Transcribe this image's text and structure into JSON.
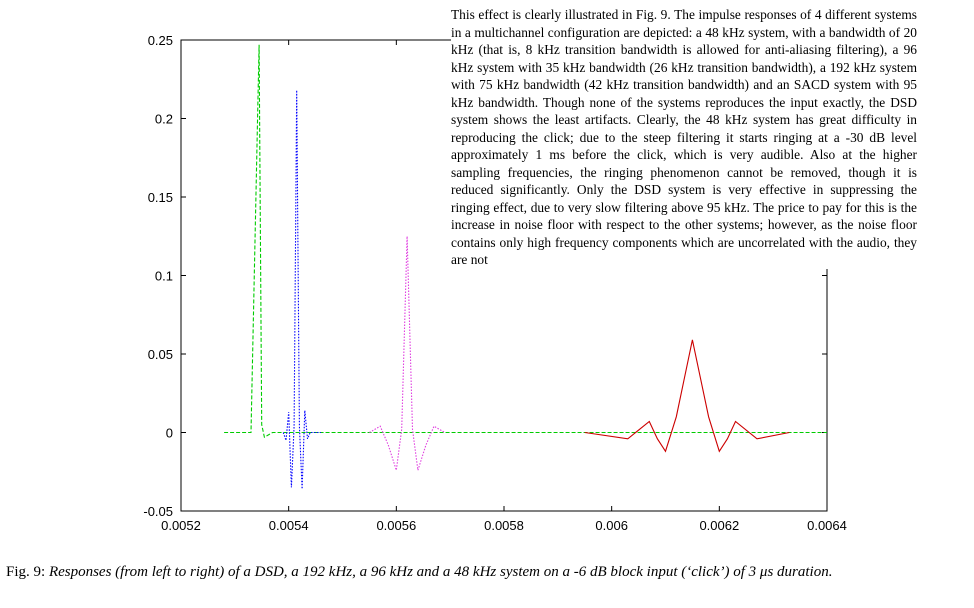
{
  "paragraph": "This effect is clearly illustrated in Fig. 9. The impulse responses of 4 different systems in a multichannel configuration are depicted: a 48 kHz system, with a bandwidth of 20 kHz (that is, 8 kHz transition bandwidth is allowed for anti-aliasing filtering), a 96 kHz system with 35 kHz bandwidth (26 kHz transition bandwidth), a 192 kHz system with 75 kHz bandwidth (42 kHz transition bandwidth) and an SACD system with 95 kHz bandwidth. Though none of the systems reproduces the input exactly, the DSD system shows the least artifacts. Clearly, the 48 kHz system has great difficulty in reproducing the click; due to the steep filtering it starts ringing at a -30 dB level approximately 1 ms before the click, which is very audible. Also at the higher sampling frequencies, the ringing phenomenon cannot be removed, though it is reduced significantly. Only the DSD system is very effective in suppressing the ringing effect, due to very slow filtering above 95 kHz. The price to pay for this is the increase in noise floor with respect to the other systems; however, as the noise floor contains only high frequency components which are uncorrelated with the audio, they are not",
  "caption": {
    "label": "Fig. 9: ",
    "text": "Responses (from left to right) of a DSD, a 192 kHz, a 96 kHz and a 48 kHz system on a -6 dB block input (‘click’) of 3 μs duration."
  },
  "chart_data": {
    "type": "line",
    "xlim": [
      0.0052,
      0.0064
    ],
    "ylim": [
      -0.05,
      0.25
    ],
    "xticks": [
      "0.0052",
      "0.0054",
      "0.0056",
      "0.0058",
      "0.006",
      "0.0062",
      "0.0064"
    ],
    "yticks": [
      "-0.05",
      "0",
      "0.05",
      "0.1",
      "0.15",
      "0.2",
      "0.25"
    ],
    "grid": false,
    "series": [
      {
        "color": "#00cc00",
        "style": "dashed",
        "x": [
          0.00528,
          0.00533,
          0.005345,
          0.00535,
          0.005355,
          0.00537,
          0.0064
        ],
        "y": [
          0,
          0,
          0.247,
          0.005,
          -0.003,
          0,
          0
        ]
      },
      {
        "color": "#0000ff",
        "style": "dotted",
        "x": [
          0.00539,
          0.005395,
          0.0054,
          0.005405,
          0.00541,
          0.005415,
          0.00542,
          0.005425,
          0.00543,
          0.005435,
          0.00544,
          0.00546
        ],
        "y": [
          0,
          -0.005,
          0.013,
          -0.035,
          0.004,
          0.218,
          0.004,
          -0.036,
          0.014,
          -0.004,
          0,
          0
        ]
      },
      {
        "color": "#e040e0",
        "style": "dotted",
        "x": [
          0.00555,
          0.00557,
          0.005585,
          0.0056,
          0.00561,
          0.00562,
          0.00563,
          0.00564,
          0.005655,
          0.00567,
          0.00569
        ],
        "y": [
          0,
          0.004,
          -0.008,
          -0.024,
          0.002,
          0.125,
          0.002,
          -0.024,
          -0.008,
          0.004,
          0
        ]
      },
      {
        "color": "#cc0000",
        "style": "solid",
        "x": [
          0.00595,
          0.00603,
          0.00607,
          0.006085,
          0.0061,
          0.00612,
          0.00615,
          0.00618,
          0.0062,
          0.006215,
          0.00623,
          0.00627,
          0.00633
        ],
        "y": [
          0,
          -0.004,
          0.007,
          -0.004,
          -0.012,
          0.01,
          0.059,
          0.01,
          -0.012,
          -0.004,
          0.007,
          -0.004,
          0
        ]
      }
    ]
  }
}
